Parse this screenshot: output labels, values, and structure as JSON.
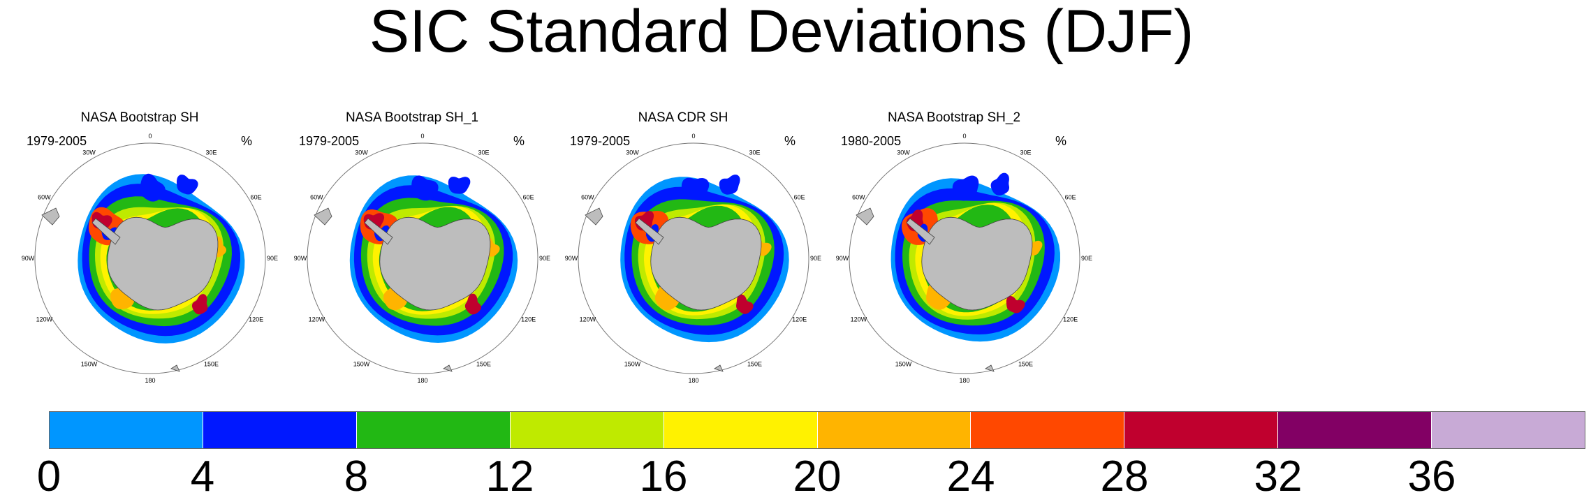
{
  "title": "SIC Standard Deviations (DJF)",
  "panels": [
    {
      "title": "NASA Bootstrap SH",
      "years": "1979-2005",
      "units": "%"
    },
    {
      "title": "NASA Bootstrap SH_1",
      "years": "1979-2005",
      "units": "%"
    },
    {
      "title": "NASA CDR SH",
      "years": "1979-2005",
      "units": "%"
    },
    {
      "title": "NASA Bootstrap SH_2",
      "years": "1980-2005",
      "units": "%"
    }
  ],
  "longitude_labels": [
    "0",
    "30E",
    "60E",
    "90E",
    "120E",
    "150E",
    "180",
    "150W",
    "120W",
    "90W",
    "60W",
    "30W"
  ],
  "colorbar": {
    "labels": [
      "0",
      "4",
      "8",
      "12",
      "16",
      "20",
      "24",
      "28",
      "32",
      "36"
    ],
    "colors": [
      "#0096ff",
      "#0018ff",
      "#22b814",
      "#bfea00",
      "#fff200",
      "#ffb400",
      "#ff4800",
      "#c0002e",
      "#820064",
      "#c8aad6"
    ]
  },
  "colors": {
    "land": "#bdbdbd",
    "coast": "#444444"
  }
}
